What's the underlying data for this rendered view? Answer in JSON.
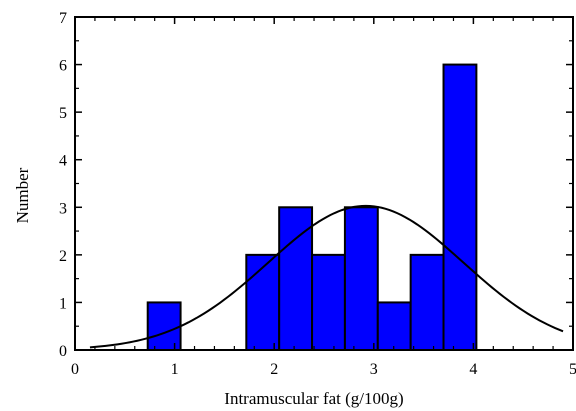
{
  "chart_data": {
    "type": "bar",
    "title": "",
    "xlabel": "Intramuscular fat  (g/100g)",
    "ylabel": "Number",
    "xlim": [
      0,
      5
    ],
    "ylim": [
      0,
      7
    ],
    "x_ticks": [
      0,
      1,
      2,
      3,
      4,
      5
    ],
    "y_ticks": [
      0,
      1,
      2,
      3,
      4,
      5,
      6,
      7
    ],
    "x_tick_labels": [
      "0",
      "1",
      "2",
      "3",
      "4",
      "5"
    ],
    "y_tick_labels": [
      "0",
      "1",
      "2",
      "3",
      "4",
      "5",
      "6",
      "7"
    ],
    "bin_width": 0.33,
    "bins": [
      {
        "x0": 0.73,
        "x1": 1.06,
        "count": 1
      },
      {
        "x0": 1.72,
        "x1": 2.05,
        "count": 2
      },
      {
        "x0": 2.05,
        "x1": 2.38,
        "count": 3
      },
      {
        "x0": 2.38,
        "x1": 2.71,
        "count": 2
      },
      {
        "x0": 2.71,
        "x1": 3.04,
        "count": 3
      },
      {
        "x0": 3.04,
        "x1": 3.37,
        "count": 1
      },
      {
        "x0": 3.37,
        "x1": 3.7,
        "count": 2
      },
      {
        "x0": 3.7,
        "x1": 4.03,
        "count": 6
      }
    ],
    "fitted_curve": {
      "type": "normal",
      "mean": 2.92,
      "sd": 0.98,
      "peak": 3.03,
      "x_range": [
        0.15,
        4.9
      ]
    },
    "grid": false,
    "legend": "none",
    "bar_color": "#0000ff",
    "bar_edge_color": "#000000",
    "curve_color": "#000000"
  }
}
